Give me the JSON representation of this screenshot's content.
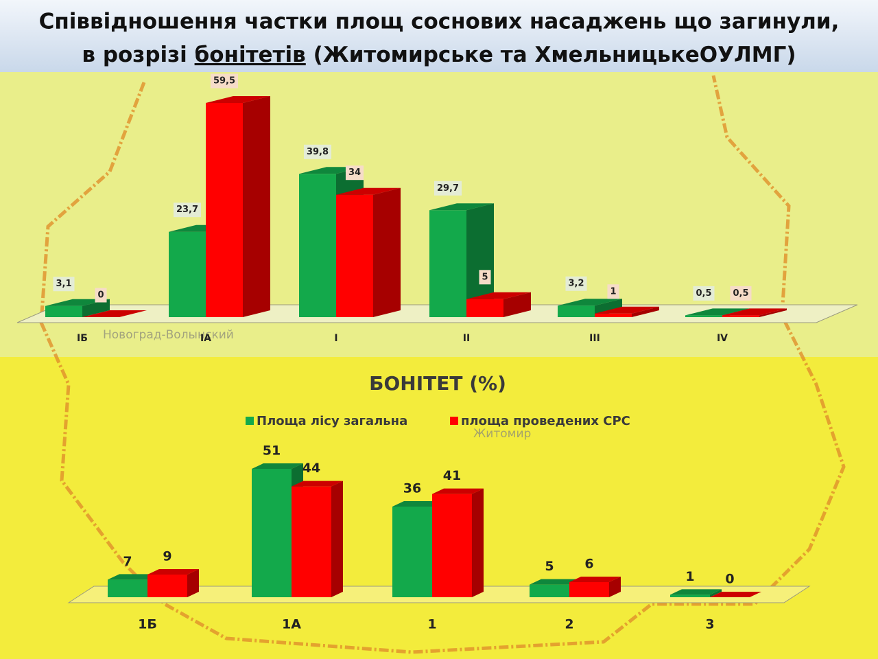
{
  "title": [
    "Співвідношення частки площ соснових насаджень що загинули,",
    "в розрізі ",
    "бонітетів",
    " (Житомирське та ХмельницькеОУЛМГ)"
  ],
  "map_labels": [
    "Новоград-Волынский",
    "Житомир"
  ],
  "chart_data": [
    {
      "type": "bar3d",
      "x_label": "БОНІТЕТ (%)",
      "categories": [
        "ІБ",
        "ІА",
        "І",
        "ІІ",
        "ІІІ",
        "IV"
      ],
      "series": [
        {
          "name": "Площа лісу загальна",
          "color": "#13a94b",
          "values": [
            3.1,
            23.7,
            39.8,
            29.7,
            3.2,
            0.5
          ],
          "value_labels": [
            "3,1",
            "23,7",
            "39,8",
            "29,7",
            "3,2",
            "0,5"
          ]
        },
        {
          "name": "площа проведених СРС",
          "color": "#ff0000",
          "values": [
            0,
            59.5,
            34,
            5,
            1,
            0.5
          ],
          "value_labels": [
            "0",
            "59,5",
            "34",
            "5",
            "1",
            "0,5"
          ]
        }
      ],
      "legend": true
    },
    {
      "type": "bar3d",
      "categories": [
        "1Б",
        "1А",
        "1",
        "2",
        "3"
      ],
      "series": [
        {
          "color": "#13a94b",
          "values": [
            7,
            51,
            36,
            5,
            1
          ]
        },
        {
          "color": "#ff0000",
          "values": [
            9,
            44,
            41,
            6,
            0
          ]
        }
      ]
    }
  ]
}
